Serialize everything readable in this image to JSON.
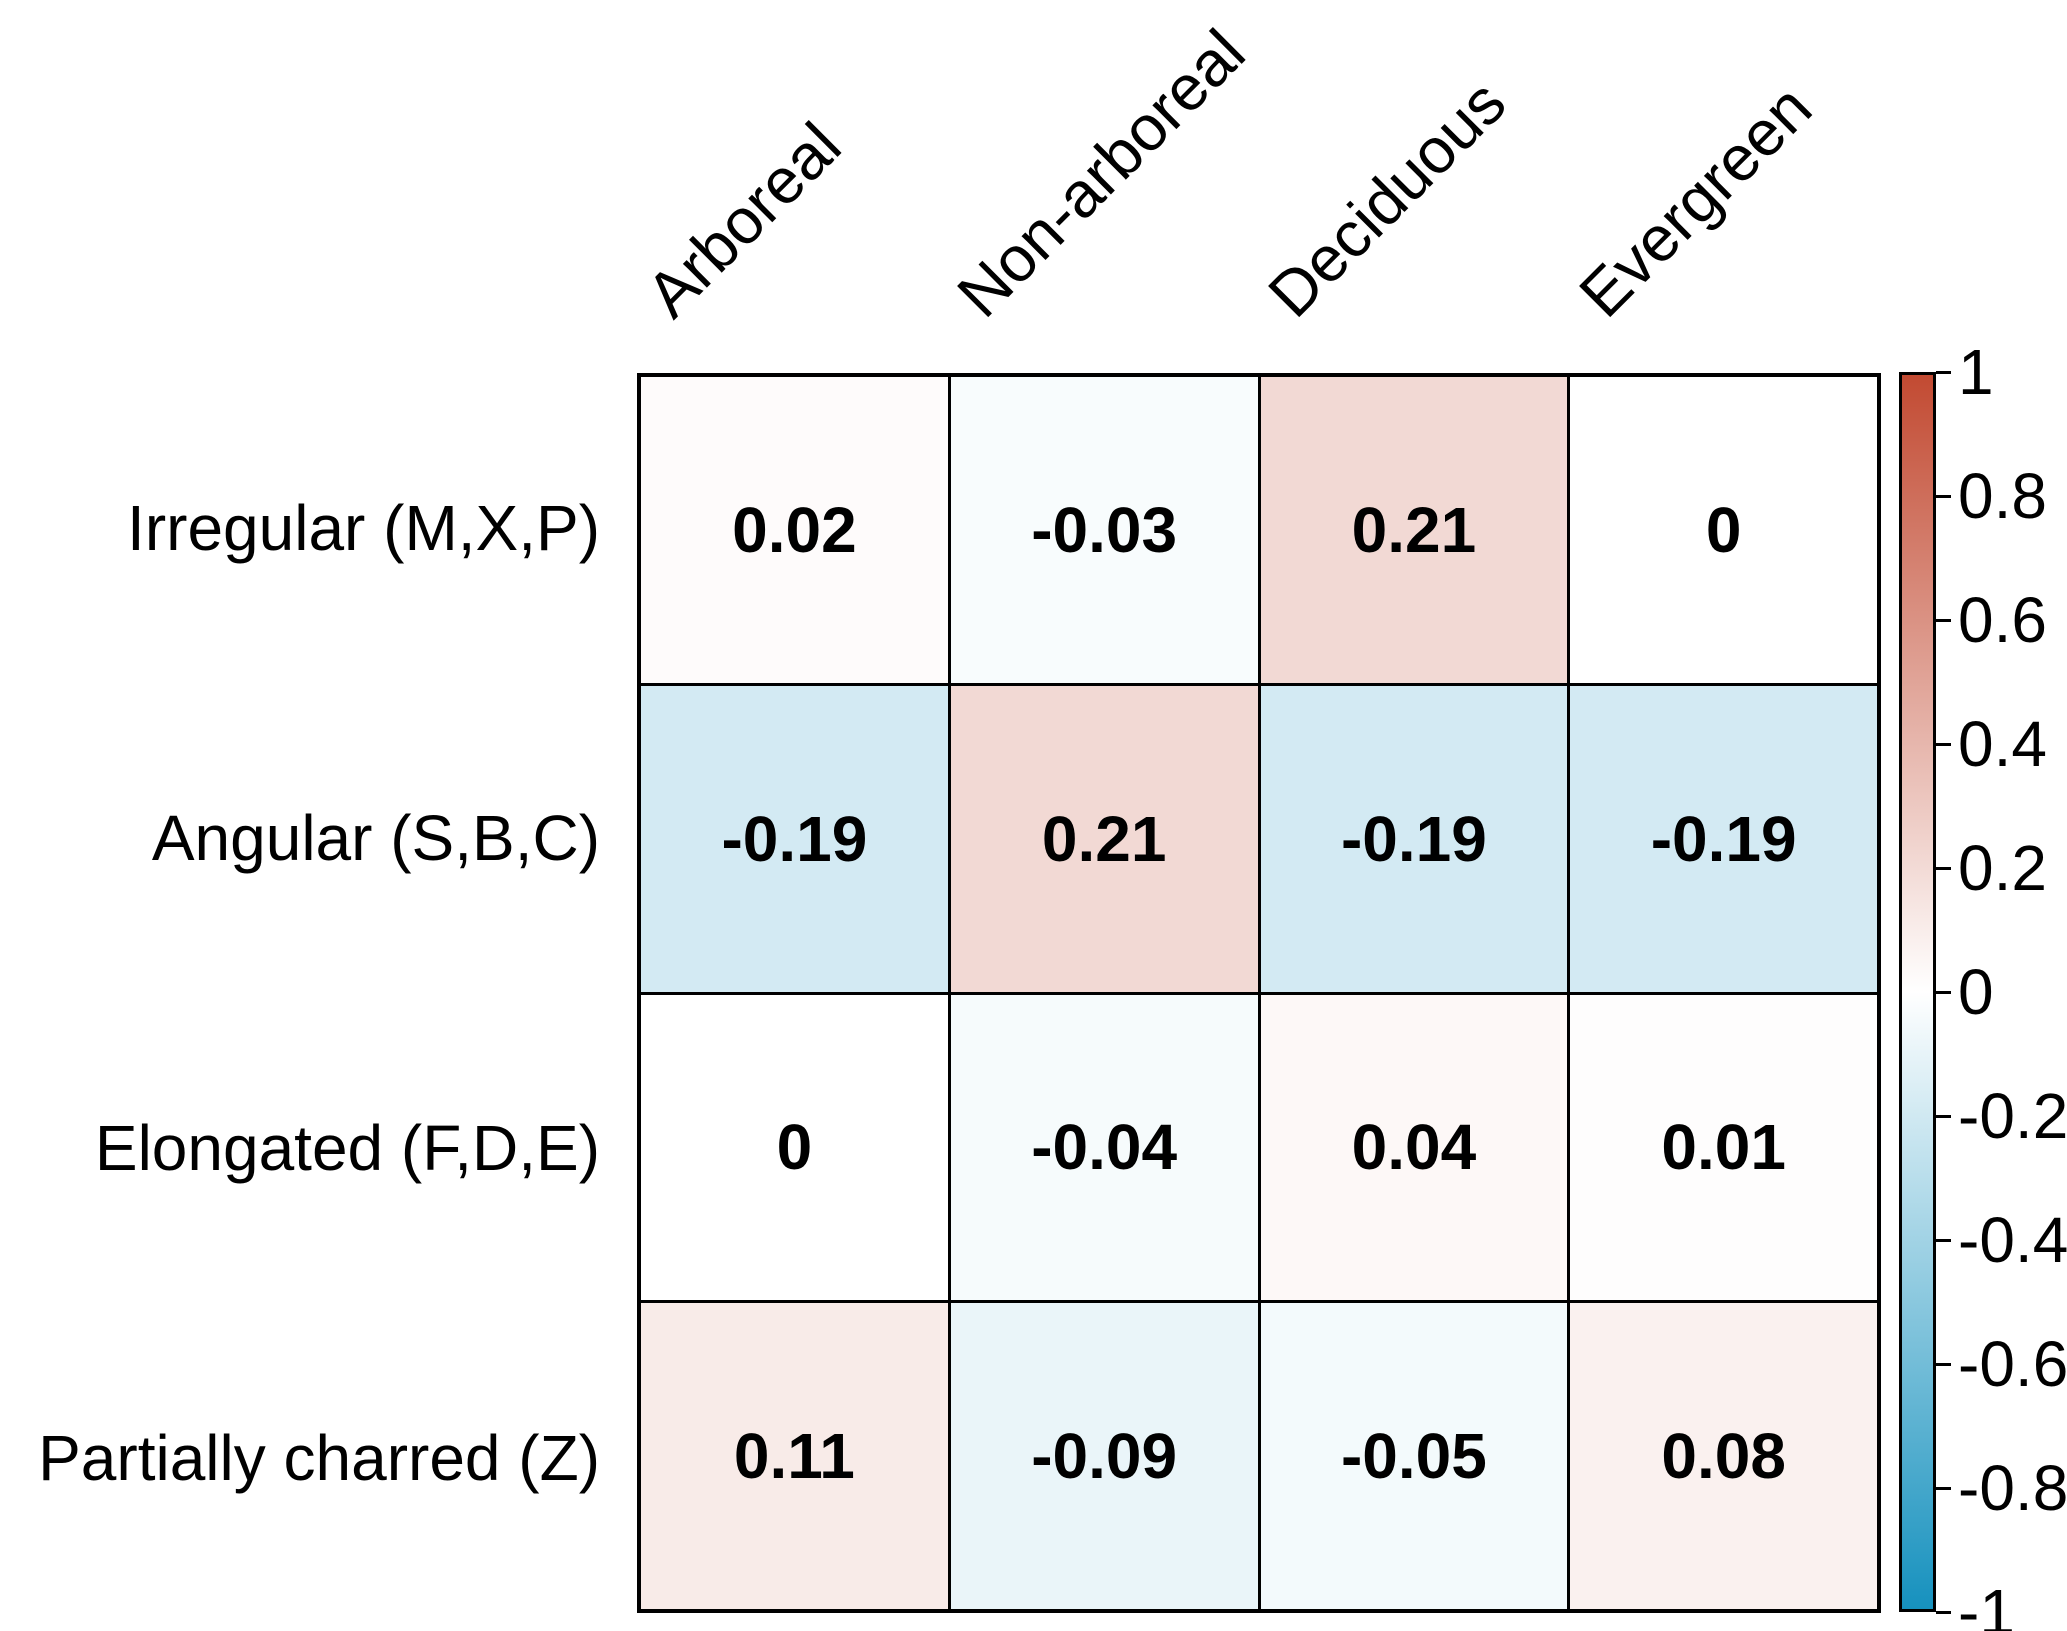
{
  "chart_data": {
    "type": "heatmap",
    "title": "",
    "xlabel": "",
    "ylabel": "",
    "columns": [
      "Arboreal",
      "Non-arboreal",
      "Deciduous",
      "Evergreen"
    ],
    "rows": [
      "Irregular (M,X,P)",
      "Angular (S,B,C)",
      "Elongated (F,D,E)",
      "Partially charred (Z)"
    ],
    "values": [
      [
        0.02,
        -0.03,
        0.21,
        0
      ],
      [
        -0.19,
        0.21,
        -0.19,
        -0.19
      ],
      [
        0,
        -0.04,
        0.04,
        0.01
      ],
      [
        0.11,
        -0.09,
        -0.05,
        0.08
      ]
    ],
    "value_labels": [
      [
        "0.02",
        "-0.03",
        "0.21",
        "0"
      ],
      [
        "-0.19",
        "0.21",
        "-0.19",
        "-0.19"
      ],
      [
        "0",
        "-0.04",
        "0.04",
        "0.01"
      ],
      [
        "0.11",
        "-0.09",
        "-0.05",
        "0.08"
      ]
    ],
    "colorbar": {
      "min": -1,
      "max": 1,
      "tick_values": [
        1,
        0.8,
        0.6,
        0.4,
        0.2,
        0,
        -0.2,
        -0.4,
        -0.6,
        -0.8,
        -1
      ],
      "tick_labels": [
        "1",
        "0.8",
        "0.6",
        "0.4",
        "0.2",
        "0",
        "-0.2",
        "-0.4",
        "-0.6",
        "-0.8",
        "-1"
      ],
      "position": "right"
    },
    "colors": {
      "positive_end": "#C24A32",
      "midpoint": "#FFFFFF",
      "negative_end": "#1691BE",
      "grid_line": "#000000",
      "text": "#000000"
    },
    "legend": "none",
    "grid": "cell-borders"
  }
}
